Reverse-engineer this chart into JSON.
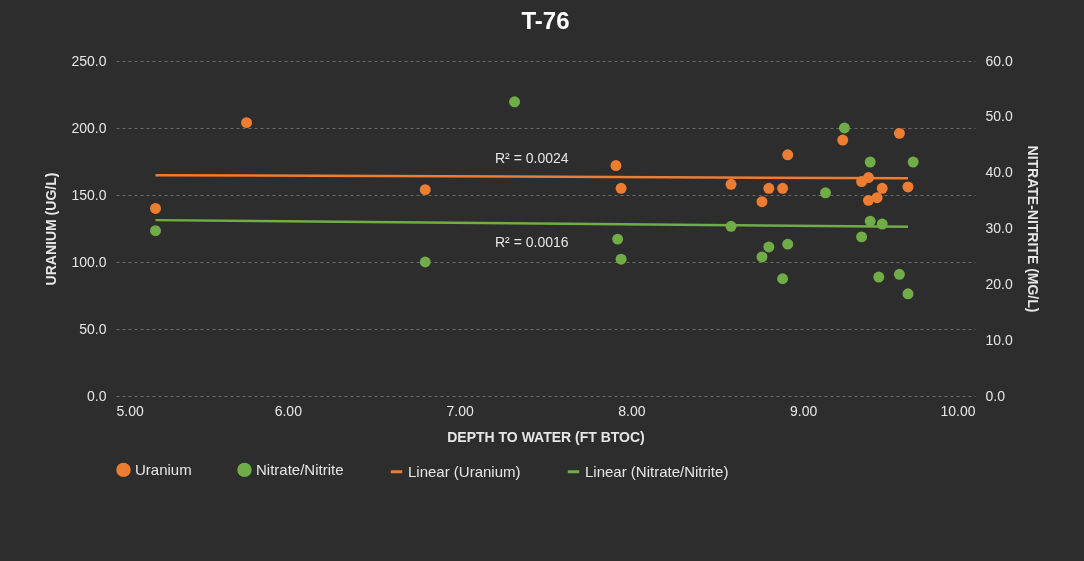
{
  "chart_data": {
    "type": "scatter",
    "title": "T-76",
    "xlabel": "DEPTH TO WATER (FT BTOC)",
    "ylabel": "URANIUM (UG/L)",
    "y2label": "NITRATE-NITRITE (MG/L)",
    "xlim": [
      5,
      10
    ],
    "xticks": [
      {
        "value": 5,
        "label": "5.00"
      },
      {
        "value": 6,
        "label": "6.00"
      },
      {
        "value": 7,
        "label": "7.00"
      },
      {
        "value": 8,
        "label": "8.00"
      },
      {
        "value": 9,
        "label": "9.00"
      },
      {
        "value": 10,
        "label": "10.00"
      }
    ],
    "ylim": [
      0,
      250
    ],
    "yticks": [
      {
        "value": 0,
        "label": "0.0"
      },
      {
        "value": 50,
        "label": "50.0"
      },
      {
        "value": 100,
        "label": "100.0"
      },
      {
        "value": 150,
        "label": "150.0"
      },
      {
        "value": 200,
        "label": "200.0"
      },
      {
        "value": 250,
        "label": "250.0"
      }
    ],
    "y2lim": [
      0,
      60
    ],
    "y2ticks": [
      {
        "value": 0,
        "label": "0.0"
      },
      {
        "value": 10,
        "label": "10.0"
      },
      {
        "value": 20,
        "label": "20.0"
      },
      {
        "value": 30,
        "label": "30.0"
      },
      {
        "value": 40,
        "label": "40.0"
      },
      {
        "value": 50,
        "label": "50.0"
      },
      {
        "value": 60,
        "label": "60.0"
      }
    ],
    "grid": "y",
    "legend": "bottom",
    "series": [
      {
        "name": "Uranium",
        "marker": "circle",
        "color": "#ed7d31",
        "x": [
          5.23,
          5.76,
          6.8,
          7.91,
          7.94,
          8.58,
          8.76,
          8.8,
          8.88,
          8.91,
          9.23,
          9.34,
          9.38,
          9.38,
          9.43,
          9.46,
          9.56,
          9.61
        ],
        "values": [
          140,
          204,
          154,
          172,
          155,
          158,
          145,
          155,
          155,
          180,
          191,
          160,
          163,
          146,
          148,
          155,
          196,
          156
        ]
      },
      {
        "name": "Nitrate/Nitrite",
        "marker": "circle",
        "axis": "y2",
        "color": "#70ad47",
        "x": [
          5.23,
          6.8,
          7.32,
          7.92,
          7.94,
          8.58,
          8.76,
          8.8,
          8.88,
          8.91,
          9.13,
          9.24,
          9.34,
          9.39,
          9.39,
          9.44,
          9.46,
          9.56,
          9.61,
          9.64
        ],
        "values": [
          29.6,
          24.0,
          52.7,
          28.1,
          24.5,
          30.4,
          24.9,
          26.7,
          21.0,
          27.2,
          36.4,
          48.0,
          28.5,
          41.9,
          31.3,
          21.3,
          30.8,
          21.8,
          18.3,
          41.9
        ]
      },
      {
        "name": "Linear (Uranium)",
        "type": "line",
        "line_style": "solid",
        "color": "#ed7d31",
        "x": [
          5.23,
          9.61
        ],
        "values": [
          164.8,
          162.5
        ]
      },
      {
        "name": "Linear (Nitrate/Nitrite)",
        "type": "line",
        "line_style": "solid",
        "axis": "y2",
        "color": "#70ad47",
        "x": [
          5.23,
          9.61
        ],
        "values": [
          31.5,
          30.3
        ]
      }
    ],
    "annotations": [
      "R² = 0.0024",
      "R² = 0.0016"
    ]
  }
}
